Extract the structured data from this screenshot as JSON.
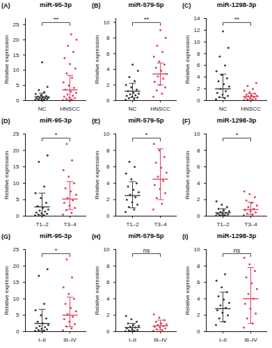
{
  "chart_data": [
    {
      "type": "scatter",
      "panel": "(A)",
      "title": "miR-95-3p",
      "y_label": "Relative expression",
      "categories": [
        "NC",
        "HNSCC"
      ],
      "colors": [
        "#3a3a3a",
        "#e0405e"
      ],
      "values": [
        [
          0.2,
          0.3,
          0.4,
          0.5,
          0.6,
          0.7,
          0.8,
          0.9,
          1.0,
          1.1,
          1.3,
          1.5,
          1.8,
          2.2,
          2.8,
          3.5,
          4.5,
          12.6
        ],
        [
          0.2,
          0.4,
          0.6,
          0.8,
          1.0,
          1.3,
          1.6,
          2.0,
          2.5,
          3.0,
          3.6,
          4.2,
          5.0,
          6.0,
          7.5,
          9.0,
          10.5,
          12.0,
          14.0,
          16.0,
          18.0,
          20.0,
          21.8
        ]
      ],
      "means": [
        1.2,
        3.5
      ],
      "error_bars": [
        [
          0.2,
          2.4
        ],
        [
          0.3,
          8.3
        ]
      ],
      "significance": "**",
      "ylim": [
        0,
        27
      ],
      "yticks": [
        0,
        5,
        10,
        15,
        20,
        25
      ]
    },
    {
      "type": "scatter",
      "panel": "(B)",
      "title": "miR-579-5p",
      "y_label": "Relative expression",
      "categories": [
        "NC",
        "HNSCC"
      ],
      "colors": [
        "#3a3a3a",
        "#e0405e"
      ],
      "values": [
        [
          0.1,
          0.2,
          0.3,
          0.4,
          0.5,
          0.6,
          0.7,
          0.8,
          0.9,
          1.0,
          1.2,
          1.4,
          1.7,
          2.0,
          2.5,
          3.0,
          3.8,
          4.6
        ],
        [
          0.5,
          0.9,
          1.3,
          1.7,
          2.0,
          2.4,
          2.8,
          3.1,
          3.4,
          3.8,
          4.2,
          4.6,
          5.0,
          5.6,
          6.2,
          7.0,
          8.0,
          9.0
        ]
      ],
      "means": [
        1.2,
        3.4
      ],
      "error_bars": [
        [
          0.4,
          2.2
        ],
        [
          2.0,
          4.8
        ]
      ],
      "significance": "**",
      "ylim": [
        0,
        10.5
      ],
      "yticks": [
        0,
        2,
        4,
        6,
        8,
        10
      ]
    },
    {
      "type": "scatter",
      "panel": "(C)",
      "title": "miR-1298-3p",
      "y_label": "Relative expression",
      "categories": [
        "NC",
        "HNSCC"
      ],
      "colors": [
        "#3a3a3a",
        "#e0405e"
      ],
      "values": [
        [
          0.2,
          0.4,
          0.6,
          0.8,
          1.0,
          1.3,
          1.6,
          2.0,
          2.4,
          2.8,
          3.3,
          3.8,
          4.4,
          5.0,
          6.0,
          7.5,
          9.0,
          11.8
        ],
        [
          0.05,
          0.1,
          0.2,
          0.3,
          0.4,
          0.5,
          0.6,
          0.7,
          0.8,
          0.9,
          1.0,
          1.2,
          1.4,
          1.7,
          2.0,
          2.5,
          3.0
        ]
      ],
      "means": [
        2.0,
        0.7
      ],
      "error_bars": [
        [
          0.5,
          4.5
        ],
        [
          0.2,
          1.2
        ]
      ],
      "significance": "**",
      "ylim": [
        0,
        14
      ],
      "yticks": [
        0,
        2,
        4,
        6,
        8,
        10,
        12,
        14
      ]
    },
    {
      "type": "scatter",
      "panel": "(D)",
      "title": "miR-95-3p",
      "y_label": "Relative expression",
      "categories": [
        "T1–2",
        "T3–4"
      ],
      "colors": [
        "#3a3a3a",
        "#e0405e"
      ],
      "values": [
        [
          0.2,
          0.3,
          0.5,
          0.7,
          0.9,
          1.1,
          1.4,
          1.7,
          2.0,
          2.5,
          3.0,
          4.0,
          5.5,
          7.0,
          9.0,
          16.5,
          18.5
        ],
        [
          0.5,
          1.0,
          1.8,
          2.5,
          3.2,
          4.0,
          4.8,
          5.5,
          6.5,
          7.5,
          8.5,
          10.0,
          12.0,
          14.0,
          17.0,
          22.0
        ]
      ],
      "means": [
        2.8,
        5.2
      ],
      "error_bars": [
        [
          0.3,
          7.0
        ],
        [
          2.0,
          10.5
        ]
      ],
      "significance": "*",
      "ylim": [
        0,
        25
      ],
      "yticks": [
        0,
        5,
        10,
        15,
        20,
        25
      ]
    },
    {
      "type": "scatter",
      "panel": "(E)",
      "title": "miR-579-5p",
      "y_label": "Relative expression",
      "categories": [
        "T1–2",
        "T3–4"
      ],
      "colors": [
        "#3a3a3a",
        "#e0405e"
      ],
      "values": [
        [
          0.5,
          0.8,
          1.1,
          1.4,
          1.7,
          2.0,
          2.3,
          2.6,
          2.9,
          3.2,
          3.6,
          4.0,
          4.5,
          5.2,
          6.0,
          6.6
        ],
        [
          0.8,
          1.5,
          2.2,
          2.8,
          3.3,
          3.8,
          4.3,
          4.8,
          5.3,
          5.9,
          6.5,
          7.2,
          8.0,
          8.8
        ]
      ],
      "means": [
        2.5,
        4.5
      ],
      "error_bars": [
        [
          1.0,
          4.2
        ],
        [
          2.0,
          8.2
        ]
      ],
      "significance": "*",
      "ylim": [
        0,
        10
      ],
      "yticks": [
        0,
        2,
        4,
        6,
        8,
        10
      ]
    },
    {
      "type": "scatter",
      "panel": "(F)",
      "title": "miR-1298-3p",
      "y_label": "Relative expression",
      "categories": [
        "T1–2",
        "T3–4"
      ],
      "colors": [
        "#3a3a3a",
        "#e0405e"
      ],
      "values": [
        [
          0.05,
          0.1,
          0.15,
          0.2,
          0.25,
          0.3,
          0.4,
          0.5,
          0.6,
          0.7,
          0.9,
          1.1,
          1.4,
          1.8
        ],
        [
          0.1,
          0.2,
          0.3,
          0.45,
          0.6,
          0.75,
          0.9,
          1.1,
          1.3,
          1.6,
          1.9,
          2.3,
          2.7,
          3.0
        ]
      ],
      "means": [
        0.4,
        0.8
      ],
      "error_bars": [
        [
          0.1,
          0.9
        ],
        [
          0.2,
          1.7
        ]
      ],
      "significance": "*",
      "ylim": [
        0,
        10
      ],
      "yticks": [
        0,
        2,
        4,
        6,
        8,
        10
      ]
    },
    {
      "type": "scatter",
      "panel": "(G)",
      "title": "miR-95-3p",
      "y_label": "Relative expression",
      "categories": [
        "I–II",
        "III–IV"
      ],
      "colors": [
        "#3a3a3a",
        "#e0405e"
      ],
      "values": [
        [
          0.2,
          0.3,
          0.5,
          0.7,
          0.9,
          1.1,
          1.4,
          1.7,
          2.0,
          2.5,
          3.0,
          4.0,
          5.0,
          6.5,
          8.5,
          17.0,
          19.0
        ],
        [
          0.4,
          1.0,
          1.6,
          2.3,
          3.0,
          3.8,
          4.5,
          5.3,
          6.2,
          7.2,
          8.5,
          10.0,
          11.5,
          13.5,
          16.5,
          22.0
        ]
      ],
      "means": [
        2.5,
        5.0
      ],
      "error_bars": [
        [
          0.3,
          6.8
        ],
        [
          1.5,
          10.5
        ]
      ],
      "significance": "*",
      "ylim": [
        0,
        25
      ],
      "yticks": [
        0,
        5,
        10,
        15,
        20,
        25
      ]
    },
    {
      "type": "scatter",
      "panel": "(H)",
      "title": "miR-579-5p",
      "y_label": "Relative expression",
      "categories": [
        "I–II",
        "III–IV"
      ],
      "colors": [
        "#3a3a3a",
        "#e0405e"
      ],
      "values": [
        [
          0.05,
          0.1,
          0.15,
          0.2,
          0.3,
          0.4,
          0.5,
          0.6,
          0.7,
          0.8,
          1.0,
          1.2,
          1.5,
          1.9
        ],
        [
          0.1,
          0.2,
          0.3,
          0.4,
          0.5,
          0.6,
          0.7,
          0.8,
          0.9,
          1.0,
          1.2,
          1.4,
          1.7,
          2.1
        ]
      ],
      "means": [
        0.5,
        0.7
      ],
      "error_bars": [
        [
          0.1,
          1.0
        ],
        [
          0.2,
          1.4
        ]
      ],
      "significance": "ns",
      "ylim": [
        0,
        10
      ],
      "yticks": [
        0,
        2,
        4,
        6,
        8,
        10
      ]
    },
    {
      "type": "scatter",
      "panel": "(I)",
      "title": "miR-1298-3p",
      "y_label": "Relative expression",
      "categories": [
        "I–II",
        "III–IV"
      ],
      "colors": [
        "#3a3a3a",
        "#e0405e"
      ],
      "values": [
        [
          0.8,
          1.2,
          1.6,
          2.0,
          2.3,
          2.6,
          2.9,
          3.2,
          3.5,
          3.9,
          4.3,
          4.8,
          5.4,
          6.2,
          7.0
        ],
        [
          0.5,
          1.0,
          1.6,
          2.2,
          2.8,
          3.4,
          4.0,
          4.6,
          5.2,
          5.9,
          6.6,
          7.4,
          8.2,
          9.0
        ]
      ],
      "means": [
        2.8,
        4.0
      ],
      "error_bars": [
        [
          1.2,
          4.8
        ],
        [
          1.0,
          7.8
        ]
      ],
      "significance": "ns",
      "ylim": [
        0,
        10
      ],
      "yticks": [
        0,
        2,
        4,
        6,
        8,
        10
      ]
    }
  ]
}
